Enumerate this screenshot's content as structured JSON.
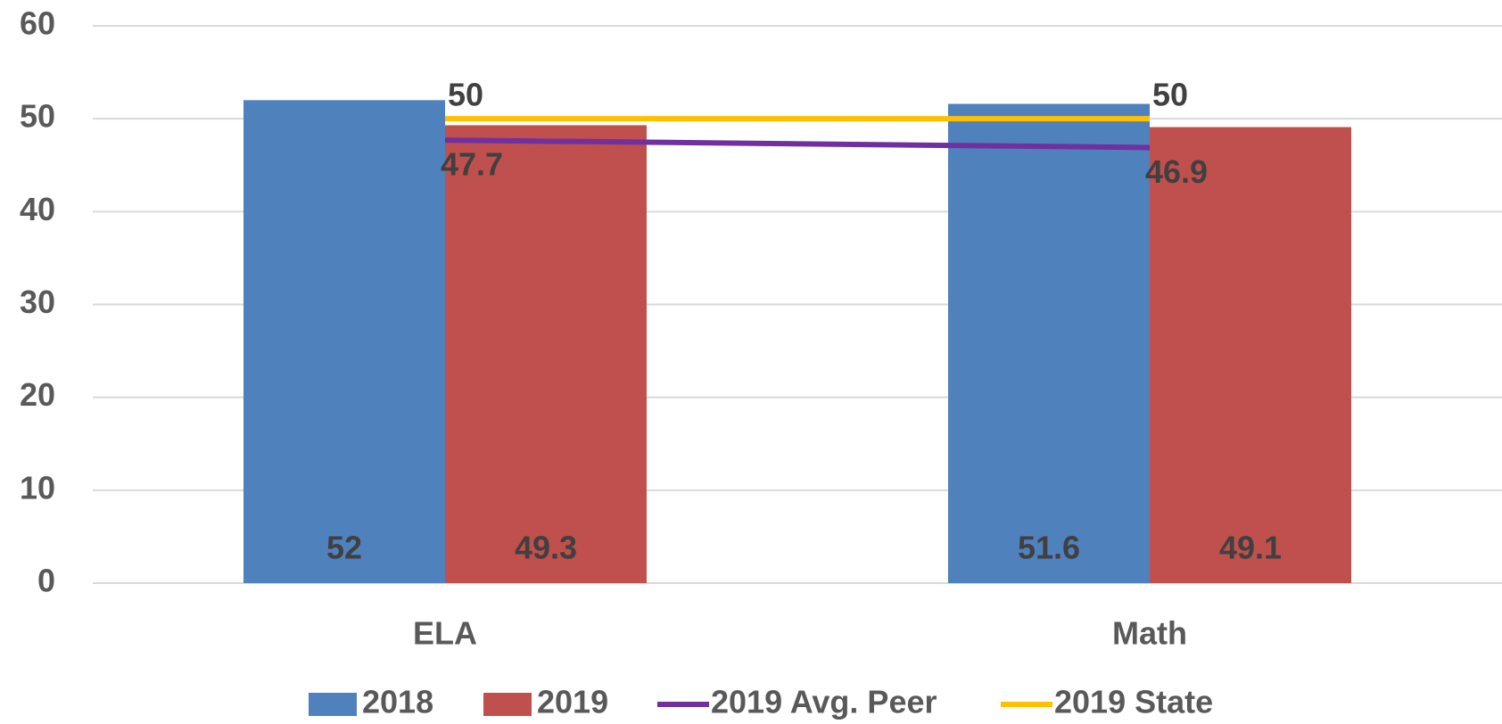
{
  "chart_data": {
    "type": "bar",
    "categories": [
      "ELA",
      "Math"
    ],
    "series": [
      {
        "name": "2018",
        "type": "bar",
        "color": "#4f81bd",
        "values": [
          52,
          51.6
        ]
      },
      {
        "name": "2019",
        "type": "bar",
        "color": "#c0504d",
        "values": [
          49.3,
          49.1
        ]
      },
      {
        "name": "2019 Avg. Peer",
        "type": "line",
        "color": "#7030a0",
        "values": [
          47.7,
          46.9
        ]
      },
      {
        "name": "2019 State",
        "type": "line",
        "color": "#ffc000",
        "values": [
          50,
          50
        ]
      }
    ],
    "ylim": [
      0,
      60
    ],
    "yticks": [
      0,
      10,
      20,
      30,
      40,
      50,
      60
    ],
    "grid": true,
    "legend": "bottom"
  }
}
